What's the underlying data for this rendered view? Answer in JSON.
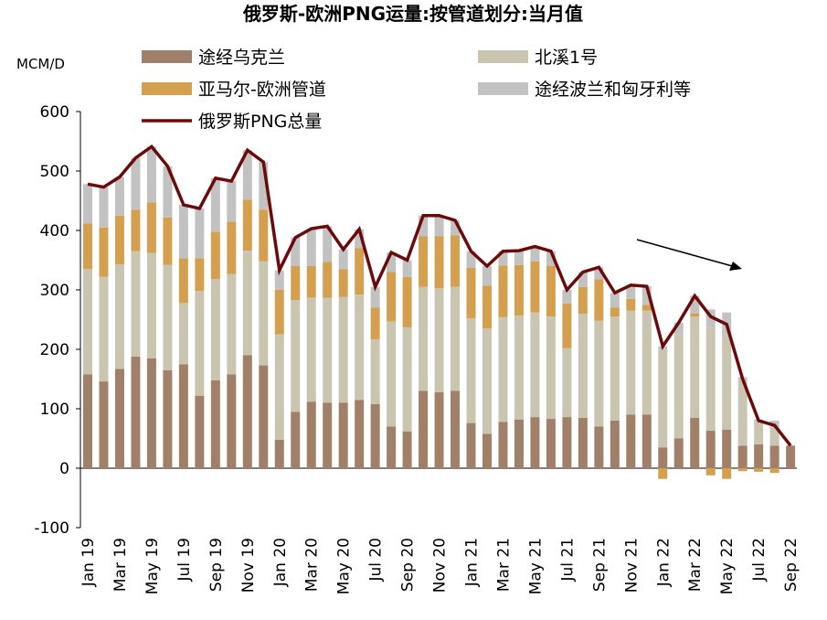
{
  "chart_data": {
    "type": "bar",
    "stacked": true,
    "title": "俄罗斯-欧洲PNG运量:按管道划分:当月值",
    "y_label": "MCM/D",
    "categories": [
      "Jan 19",
      null,
      "Mar 19",
      null,
      "May 19",
      null,
      "Jul 19",
      null,
      "Sep 19",
      null,
      "Nov 19",
      null,
      "Jan 20",
      null,
      "Mar 20",
      null,
      "May 20",
      null,
      "Jul 20",
      null,
      "Sep 20",
      null,
      "Nov 20",
      null,
      "Jan 21",
      null,
      "Mar 21",
      null,
      "May 21",
      null,
      "Jul 21",
      null,
      "Sep 21",
      null,
      "Nov 21",
      null,
      "Jan 22",
      null,
      "Mar 22",
      null,
      "May 22",
      null,
      "Jul 22",
      null,
      "Sep 22"
    ],
    "series": [
      {
        "name": "途经乌克兰",
        "color": "#a08068",
        "values": [
          158,
          146,
          167,
          188,
          185,
          165,
          175,
          122,
          148,
          158,
          190,
          173,
          48,
          95,
          112,
          110,
          110,
          115,
          108,
          70,
          62,
          130,
          128,
          130,
          76,
          58,
          78,
          82,
          86,
          83,
          86,
          85,
          70,
          80,
          90,
          90,
          35,
          50,
          85,
          63,
          65,
          38,
          40,
          38,
          38
        ]
      },
      {
        "name": "北溪1号",
        "color": "#c9c5b0",
        "values": [
          177,
          176,
          176,
          177,
          177,
          177,
          103,
          176,
          170,
          169,
          176,
          175,
          177,
          188,
          175,
          177,
          178,
          177,
          109,
          177,
          175,
          175,
          175,
          175,
          176,
          177,
          176,
          175,
          176,
          172,
          116,
          175,
          178,
          175,
          175,
          175,
          165,
          175,
          170,
          175,
          160,
          115,
          38,
          30,
          0
        ]
      },
      {
        "name": "亚马尔-欧洲管道",
        "color": "#d4a050",
        "values": [
          77,
          83,
          82,
          70,
          85,
          80,
          75,
          55,
          80,
          88,
          86,
          87,
          75,
          57,
          53,
          60,
          47,
          78,
          53,
          83,
          85,
          85,
          87,
          87,
          85,
          72,
          87,
          85,
          86,
          85,
          75,
          45,
          70,
          15,
          20,
          10,
          -18,
          0,
          5,
          -12,
          -18,
          -5,
          -6,
          -8,
          0
        ]
      },
      {
        "name": "途经波兰和匈牙利等",
        "color": "#c2c2c2",
        "values": [
          66,
          68,
          65,
          87,
          94,
          86,
          90,
          84,
          90,
          68,
          83,
          80,
          33,
          48,
          63,
          60,
          33,
          32,
          35,
          33,
          28,
          35,
          35,
          25,
          28,
          33,
          24,
          24,
          25,
          25,
          23,
          25,
          20,
          25,
          23,
          31,
          5,
          20,
          30,
          29,
          37,
          0,
          4,
          12,
          0
        ]
      },
      {
        "name": "俄罗斯PNG总量",
        "color": "#6b0a0a",
        "type": "line",
        "values": [
          478,
          473,
          490,
          522,
          541,
          508,
          443,
          437,
          488,
          483,
          535,
          515,
          333,
          388,
          403,
          407,
          368,
          402,
          305,
          363,
          350,
          425,
          425,
          417,
          365,
          340,
          365,
          366,
          373,
          365,
          300,
          330,
          338,
          295,
          308,
          306,
          205,
          245,
          290,
          255,
          242,
          150,
          80,
          72,
          38
        ]
      }
    ],
    "ylim": [
      -100,
      600
    ],
    "yticks": [
      -100,
      0,
      100,
      200,
      300,
      400,
      500,
      600
    ]
  }
}
